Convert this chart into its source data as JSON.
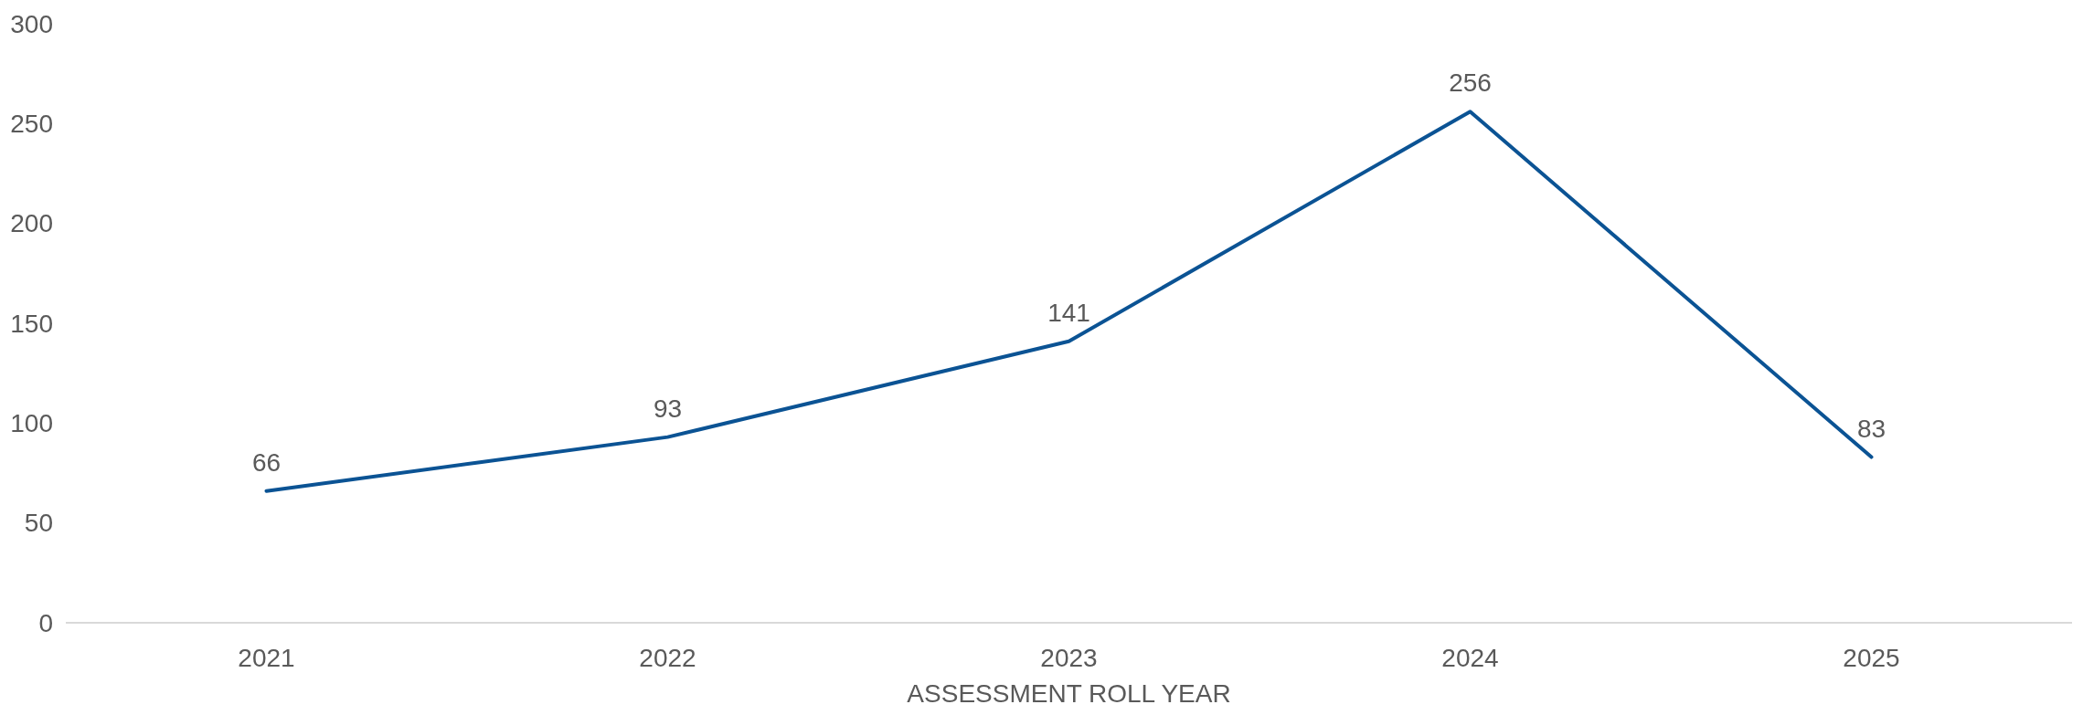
{
  "chart_data": {
    "type": "line",
    "xlabel": "ASSESSMENT ROLL YEAR",
    "categories": [
      "2021",
      "2022",
      "2023",
      "2024",
      "2025"
    ],
    "series": [
      {
        "color": "#0b5394",
        "values": [
          66,
          93,
          141,
          256,
          83
        ]
      }
    ],
    "ylim": [
      0,
      300
    ],
    "yticks": [
      0,
      50,
      100,
      150,
      200,
      250,
      300
    ],
    "data_labels": true,
    "grid": false,
    "marker": "none",
    "line_style": "solid"
  }
}
